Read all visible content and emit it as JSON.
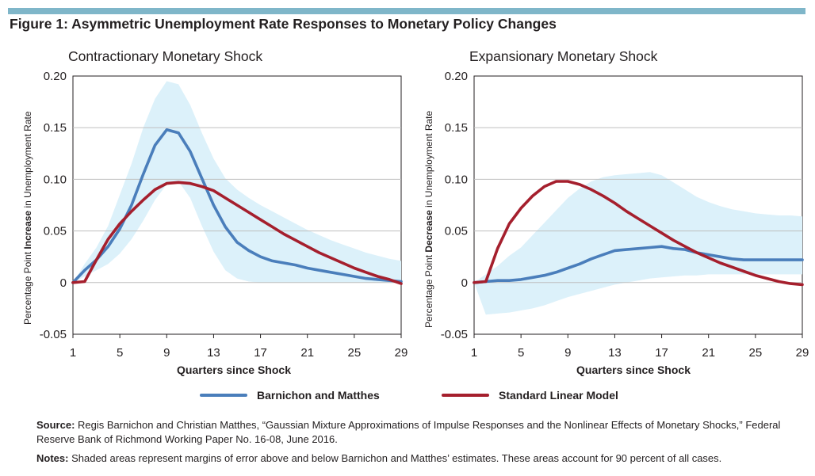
{
  "figure_title": "Figure 1: Asymmetric Unemployment Rate Responses to Monetary Policy Changes",
  "colors": {
    "barnichon": "#4a7ebb",
    "linear": "#a51f2d",
    "band": "#dcf1fa",
    "grid": "#bfbfbf",
    "topbar": "#7fb6c9"
  },
  "legend": [
    {
      "label": "Barnichon and Matthes",
      "color": "#4a7ebb"
    },
    {
      "label": "Standard Linear Model",
      "color": "#a51f2d"
    }
  ],
  "source": {
    "label": "Source:",
    "text": "Regis Barnichon and Christian Matthes, “Gaussian Mixture Approximations of Impulse Responses and the Nonlinear Effects of Monetary Shocks,” Federal Reserve Bank of Richmond Working Paper No. 16-08, June 2016."
  },
  "notes": {
    "label": "Notes:",
    "text": "Shaded areas represent margins of error above and below Barnichon and Matthes’ estimates. These areas account for 90 percent of all cases."
  },
  "chart_data": [
    {
      "type": "line",
      "title": "Contractionary Monetary Shock",
      "ylabel": {
        "pre": "Percentage Point ",
        "bold": "Increase",
        "post": " in Unemployment Rate"
      },
      "xlabel": "Quarters since Shock",
      "ylim": [
        -0.05,
        0.2
      ],
      "xlim": [
        1,
        29
      ],
      "yticks": [
        -0.05,
        0,
        0.05,
        0.1,
        0.15,
        0.2
      ],
      "ytick_labels": [
        "-0.05",
        "0",
        "0.05",
        "0.10",
        "0.15",
        "0.20"
      ],
      "xticks": [
        1,
        5,
        9,
        13,
        17,
        21,
        25,
        29
      ],
      "grid": true,
      "x": [
        1,
        2,
        3,
        4,
        5,
        6,
        7,
        8,
        9,
        10,
        11,
        12,
        13,
        14,
        15,
        16,
        17,
        18,
        19,
        20,
        21,
        22,
        23,
        24,
        25,
        26,
        27,
        28,
        29
      ],
      "series": [
        {
          "name": "Barnichon and Matthes",
          "values": [
            0,
            0.012,
            0.022,
            0.035,
            0.052,
            0.075,
            0.105,
            0.133,
            0.148,
            0.145,
            0.127,
            0.101,
            0.075,
            0.054,
            0.039,
            0.031,
            0.025,
            0.021,
            0.019,
            0.017,
            0.014,
            0.012,
            0.01,
            0.008,
            0.006,
            0.004,
            0.003,
            0.002,
            0.001
          ]
        },
        {
          "name": "Standard Linear Model",
          "values": [
            0,
            0.001,
            0.022,
            0.042,
            0.057,
            0.069,
            0.08,
            0.09,
            0.096,
            0.097,
            0.096,
            0.093,
            0.089,
            0.082,
            0.075,
            0.068,
            0.061,
            0.054,
            0.047,
            0.041,
            0.035,
            0.029,
            0.024,
            0.019,
            0.014,
            0.01,
            0.006,
            0.003,
            -0.001
          ]
        }
      ],
      "band": {
        "upper": [
          0,
          0.018,
          0.034,
          0.055,
          0.085,
          0.115,
          0.15,
          0.178,
          0.195,
          0.192,
          0.172,
          0.145,
          0.12,
          0.101,
          0.09,
          0.082,
          0.075,
          0.069,
          0.063,
          0.057,
          0.051,
          0.046,
          0.041,
          0.037,
          0.033,
          0.029,
          0.026,
          0.023,
          0.021
        ],
        "lower": [
          0,
          0.006,
          0.012,
          0.018,
          0.028,
          0.042,
          0.06,
          0.08,
          0.095,
          0.098,
          0.082,
          0.055,
          0.03,
          0.012,
          0.004,
          0.001,
          0.0,
          0.0,
          0.0,
          0.0,
          0.0,
          0.0,
          0.0,
          0.0,
          0.0,
          0.0,
          0.0,
          0.0,
          0.0
        ]
      }
    },
    {
      "type": "line",
      "title": "Expansionary Monetary Shock",
      "ylabel": {
        "pre": "Percentage Point ",
        "bold": "Decrease",
        "post": " in Unemployment Rate"
      },
      "xlabel": "Quarters since Shock",
      "ylim": [
        -0.05,
        0.2
      ],
      "xlim": [
        1,
        29
      ],
      "yticks": [
        -0.05,
        0,
        0.05,
        0.1,
        0.15,
        0.2
      ],
      "ytick_labels": [
        "-0.05",
        "0",
        "0.05",
        "0.10",
        "0.15",
        "0.20"
      ],
      "xticks": [
        1,
        5,
        9,
        13,
        17,
        21,
        25,
        29
      ],
      "grid": true,
      "x": [
        1,
        2,
        3,
        4,
        5,
        6,
        7,
        8,
        9,
        10,
        11,
        12,
        13,
        14,
        15,
        16,
        17,
        18,
        19,
        20,
        21,
        22,
        23,
        24,
        25,
        26,
        27,
        28,
        29
      ],
      "series": [
        {
          "name": "Barnichon and Matthes",
          "values": [
            0,
            0.001,
            0.002,
            0.002,
            0.003,
            0.005,
            0.007,
            0.01,
            0.014,
            0.018,
            0.023,
            0.027,
            0.031,
            0.032,
            0.033,
            0.034,
            0.035,
            0.033,
            0.032,
            0.029,
            0.027,
            0.025,
            0.023,
            0.022,
            0.022,
            0.022,
            0.022,
            0.022,
            0.022
          ]
        },
        {
          "name": "Standard Linear Model",
          "values": [
            0,
            0.001,
            0.033,
            0.057,
            0.072,
            0.084,
            0.093,
            0.098,
            0.098,
            0.095,
            0.09,
            0.084,
            0.077,
            0.069,
            0.062,
            0.055,
            0.048,
            0.041,
            0.035,
            0.029,
            0.024,
            0.019,
            0.015,
            0.011,
            0.007,
            0.004,
            0.001,
            -0.001,
            -0.002
          ]
        }
      ],
      "band": {
        "upper": [
          0,
          0.008,
          0.016,
          0.026,
          0.034,
          0.046,
          0.058,
          0.07,
          0.082,
          0.091,
          0.098,
          0.102,
          0.104,
          0.105,
          0.106,
          0.107,
          0.104,
          0.097,
          0.09,
          0.083,
          0.078,
          0.074,
          0.071,
          0.069,
          0.067,
          0.066,
          0.065,
          0.065,
          0.064
        ],
        "lower": [
          0,
          -0.031,
          -0.03,
          -0.029,
          -0.027,
          -0.025,
          -0.022,
          -0.018,
          -0.014,
          -0.011,
          -0.008,
          -0.005,
          -0.002,
          0.0,
          0.002,
          0.004,
          0.005,
          0.006,
          0.007,
          0.007,
          0.008,
          0.008,
          0.008,
          0.008,
          0.008,
          0.008,
          0.008,
          0.008,
          0.008
        ]
      }
    }
  ]
}
